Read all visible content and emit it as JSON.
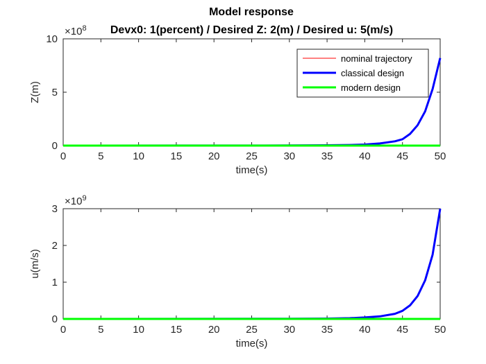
{
  "figure_title": "Model response",
  "chart_data": [
    {
      "type": "line",
      "title": "Devx0: 1(percent) / Desired Z: 2(m) / Desired u: 5(m/s)",
      "xlabel": "time(s)",
      "ylabel": "Z(m)",
      "exponent_label": "×10",
      "exponent": "8",
      "xlim": [
        0,
        50
      ],
      "ylim": [
        0,
        10
      ],
      "xticks": [
        "0",
        "5",
        "10",
        "15",
        "20",
        "25",
        "30",
        "35",
        "40",
        "45",
        "50"
      ],
      "yticks": [
        "0",
        "5",
        "10"
      ],
      "legend_position": "top-right",
      "series": [
        {
          "name": "nominal trajectory",
          "color": "#ff0000",
          "width": 1,
          "x": [
            0,
            50
          ],
          "y": [
            0,
            0
          ]
        },
        {
          "name": "classical design",
          "color": "#0000ff",
          "width": 3,
          "x": [
            0,
            30,
            35,
            38,
            40,
            42,
            44,
            45,
            46,
            47,
            48,
            49,
            50
          ],
          "y": [
            0,
            0.01,
            0.03,
            0.06,
            0.1,
            0.2,
            0.4,
            0.6,
            1.1,
            1.9,
            3.2,
            5.3,
            8.2
          ]
        },
        {
          "name": "modern design",
          "color": "#00ff00",
          "width": 3,
          "x": [
            0,
            50
          ],
          "y": [
            0,
            0
          ]
        }
      ]
    },
    {
      "type": "line",
      "title": "",
      "xlabel": "time(s)",
      "ylabel": "u(m/s)",
      "exponent_label": "×10",
      "exponent": "9",
      "xlim": [
        0,
        50
      ],
      "ylim": [
        0,
        3
      ],
      "xticks": [
        "0",
        "5",
        "10",
        "15",
        "20",
        "25",
        "30",
        "35",
        "40",
        "45",
        "50"
      ],
      "yticks": [
        "0",
        "1",
        "2",
        "3"
      ],
      "series": [
        {
          "name": "nominal trajectory",
          "color": "#ff0000",
          "width": 1,
          "x": [
            0,
            50
          ],
          "y": [
            0,
            0
          ]
        },
        {
          "name": "classical design",
          "color": "#0000ff",
          "width": 3,
          "x": [
            0,
            30,
            35,
            38,
            40,
            42,
            44,
            45,
            46,
            47,
            48,
            49,
            50
          ],
          "y": [
            0,
            0.005,
            0.01,
            0.02,
            0.04,
            0.07,
            0.14,
            0.22,
            0.37,
            0.62,
            1.05,
            1.75,
            3.0
          ]
        },
        {
          "name": "modern design",
          "color": "#00ff00",
          "width": 3,
          "x": [
            0,
            50
          ],
          "y": [
            0,
            0
          ]
        }
      ]
    }
  ]
}
